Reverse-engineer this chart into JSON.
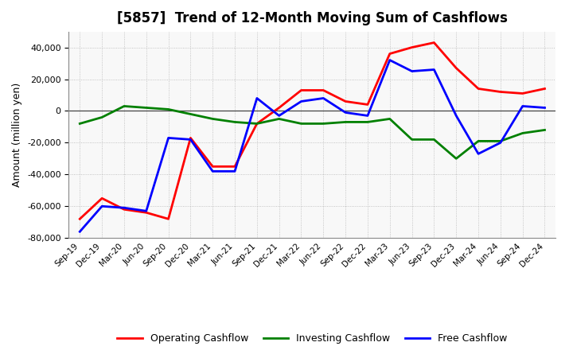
{
  "title": "[5857]  Trend of 12-Month Moving Sum of Cashflows",
  "ylabel": "Amount (million yen)",
  "x_labels": [
    "Sep-19",
    "Dec-19",
    "Mar-20",
    "Jun-20",
    "Sep-20",
    "Dec-20",
    "Mar-21",
    "Jun-21",
    "Sep-21",
    "Dec-21",
    "Mar-22",
    "Jun-22",
    "Sep-22",
    "Dec-22",
    "Mar-23",
    "Jun-23",
    "Sep-23",
    "Dec-23",
    "Mar-24",
    "Jun-24",
    "Sep-24",
    "Dec-24"
  ],
  "operating_cashflow": [
    -68000,
    -55000,
    -62000,
    -64000,
    -68000,
    -17000,
    -35000,
    -35000,
    -8000,
    2000,
    13000,
    13000,
    6000,
    4000,
    36000,
    40000,
    43000,
    27000,
    14000,
    12000,
    11000,
    14000
  ],
  "investing_cashflow": [
    -8000,
    -4000,
    3000,
    2000,
    1000,
    -2000,
    -5000,
    -7000,
    -8000,
    -5000,
    -8000,
    -8000,
    -7000,
    -7000,
    -5000,
    -18000,
    -18000,
    -30000,
    -19000,
    -19000,
    -14000,
    -12000
  ],
  "free_cashflow": [
    -76000,
    -60000,
    -61000,
    -63000,
    -17000,
    -18000,
    -38000,
    -38000,
    8000,
    -3000,
    6000,
    8000,
    -1000,
    -3000,
    32000,
    25000,
    26000,
    -3000,
    -27000,
    -20000,
    3000,
    2000
  ],
  "ylim": [
    -80000,
    50000
  ],
  "yticks": [
    -80000,
    -60000,
    -40000,
    -20000,
    0,
    20000,
    40000
  ],
  "line_colors": {
    "operating": "#ff0000",
    "investing": "#008000",
    "free": "#0000ff"
  },
  "line_width": 2.0,
  "bg_color": "#ffffff",
  "plot_bg_color": "#f8f8f8",
  "grid_color": "#999999",
  "legend_labels": [
    "Operating Cashflow",
    "Investing Cashflow",
    "Free Cashflow"
  ]
}
